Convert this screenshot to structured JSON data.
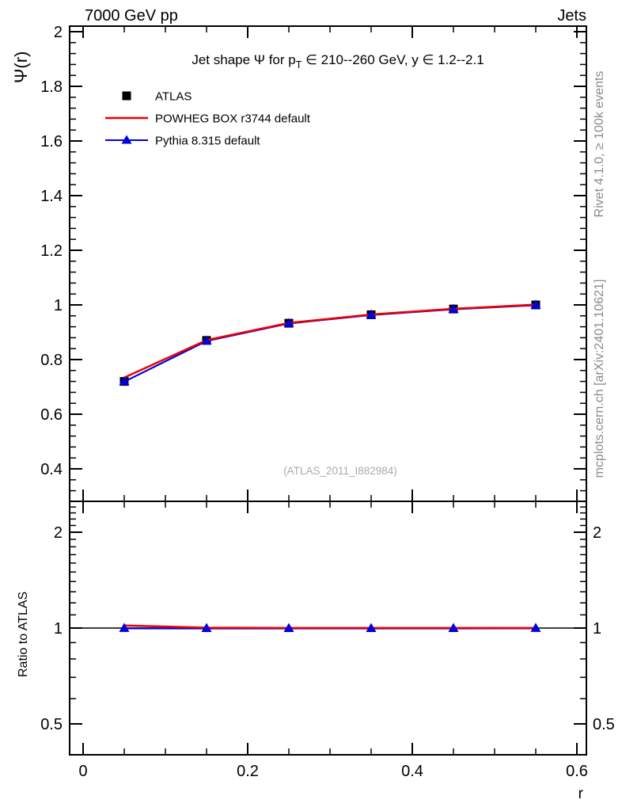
{
  "header": {
    "left_title": "7000 GeV pp",
    "right_title": "Jets"
  },
  "side_notes": {
    "top_right": "Rivet 4.1.0, ≥ 100k events",
    "bottom_right": "mcplots.cern.ch [arXiv:2401.10621]"
  },
  "watermark": "(ATLAS_2011_I882984)",
  "chart_data": {
    "type": "line",
    "title": {
      "pre": "Jet shape Ψ for p",
      "sub": "T",
      "post": " ∈ 210--260 GeV, y ∈ 1.2--2.1"
    },
    "xlabel": "r",
    "ylabel": "Ψ(r)",
    "ratio_ylabel": "Ratio to ATLAS",
    "x": [
      0.05,
      0.15,
      0.25,
      0.35,
      0.45,
      0.55
    ],
    "series": [
      {
        "name": "ATLAS",
        "marker": "square",
        "color": "#000000",
        "values": [
          0.72,
          0.87,
          0.933,
          0.964,
          0.985,
          1.0
        ]
      },
      {
        "name": "POWHEG BOX r3744 default",
        "marker": "line",
        "color": "#ee0000",
        "values": [
          0.734,
          0.871,
          0.934,
          0.965,
          0.986,
          1.001
        ]
      },
      {
        "name": "Pythia 8.315 default",
        "marker": "triangle",
        "color": "#0000dd",
        "values": [
          0.719,
          0.868,
          0.932,
          0.963,
          0.984,
          0.999
        ]
      }
    ],
    "ratio_series": [
      {
        "name": "POWHEG BOX r3744 default",
        "color": "#ee0000",
        "values": [
          1.019,
          1.003,
          1.001,
          1.001,
          1.001,
          1.001
        ]
      },
      {
        "name": "Pythia 8.315 default",
        "color": "#0000dd",
        "marker": "triangle",
        "values": [
          0.998,
          0.997,
          0.997,
          0.997,
          0.997,
          0.998
        ]
      }
    ],
    "x_axis": {
      "lim": [
        -0.0163,
        0.6115
      ],
      "majors": [
        {
          "v": 0,
          "t": "0"
        },
        {
          "v": 0.2,
          "t": "0.2"
        },
        {
          "v": 0.4,
          "t": "0.4"
        },
        {
          "v": 0.6,
          "t": "0.6"
        }
      ],
      "minor_step": 0.05
    },
    "y_main_axis": {
      "lim": [
        0.281,
        2.02
      ],
      "majors": [
        {
          "v": 0.4,
          "t": "0.4"
        },
        {
          "v": 0.6,
          "t": "0.6"
        },
        {
          "v": 0.8,
          "t": "0.8"
        },
        {
          "v": 1,
          "t": "1"
        },
        {
          "v": 1.2,
          "t": "1.2"
        },
        {
          "v": 1.4,
          "t": "1.4"
        },
        {
          "v": 1.6,
          "t": "1.6"
        },
        {
          "v": 1.8,
          "t": "1.8"
        },
        {
          "v": 2,
          "t": "2"
        }
      ],
      "minor_step": 0.04
    },
    "y_ratio_axis": {
      "scale": "log",
      "lim": [
        0.4,
        2.5
      ],
      "majors": [
        {
          "v": 0.5,
          "t": "0.5"
        },
        {
          "v": 1,
          "t": "1"
        },
        {
          "v": 2,
          "t": "2"
        }
      ],
      "minors": [
        0.4,
        0.6,
        0.7,
        0.8,
        0.9,
        1.1,
        1.2,
        1.3,
        1.4,
        1.5,
        1.6,
        1.7,
        1.8,
        1.9,
        2.1,
        2.2,
        2.3,
        2.4
      ],
      "unity_line": 1
    },
    "legend_position": "top-left",
    "grid": false
  }
}
